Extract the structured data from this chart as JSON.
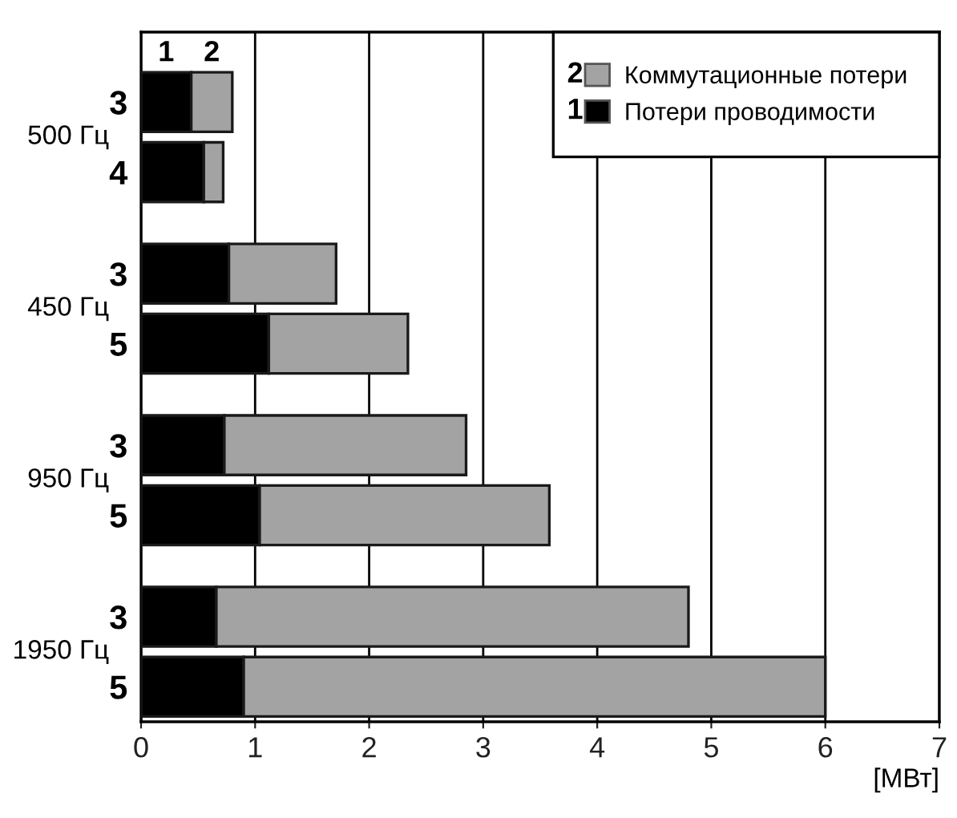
{
  "chart_data": {
    "type": "bar",
    "orientation": "horizontal",
    "stacked": true,
    "categories": [
      "3",
      "4",
      "3",
      "5",
      "3",
      "5",
      "3",
      "5"
    ],
    "series": [
      {
        "name": "Потери проводимости",
        "color": "#000000",
        "values": [
          0.44,
          0.55,
          0.77,
          1.12,
          0.73,
          1.04,
          0.66,
          0.9
        ]
      },
      {
        "name": "Коммутационные потери",
        "color": "#a3a3a3",
        "values": [
          0.36,
          0.17,
          0.94,
          1.22,
          2.12,
          2.54,
          4.14,
          5.1
        ]
      }
    ],
    "xlim": [
      0,
      7
    ],
    "xticks": [
      0,
      1,
      2,
      3,
      4,
      5,
      6,
      7
    ],
    "xlabel": "[МВт]",
    "grid": "x",
    "legend": "top right",
    "annotations": [
      "500 Гц",
      "450 Гц",
      "950 Гц",
      "1950 Гц",
      "1",
      "2",
      "1",
      "2"
    ]
  }
}
